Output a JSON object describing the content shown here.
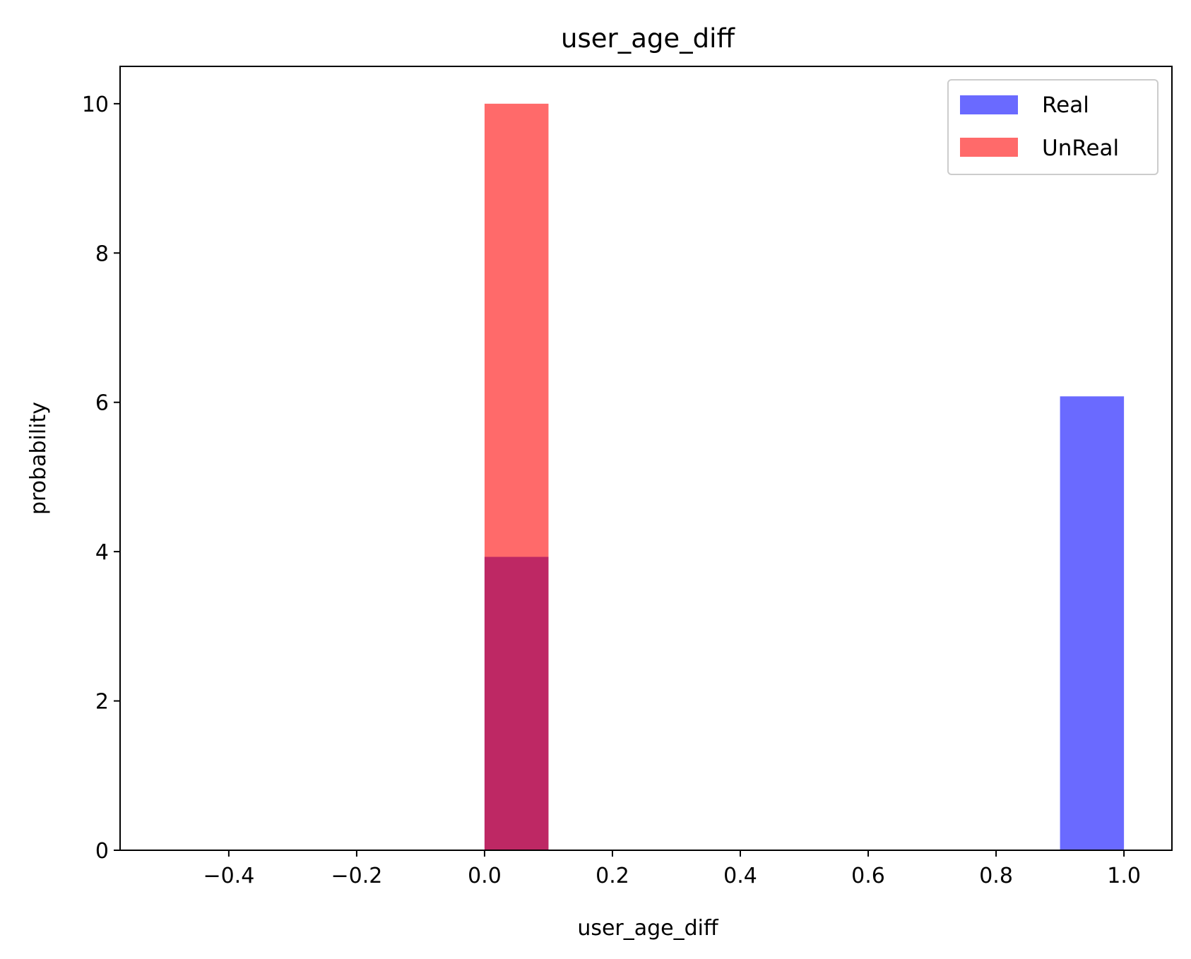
{
  "chart_data": {
    "type": "bar",
    "title": "user_age_diff",
    "xlabel": "user_age_diff",
    "ylabel": "probability",
    "xlim": [
      -0.57,
      1.075
    ],
    "ylim": [
      0,
      10.5
    ],
    "x_ticks": [
      {
        "value": -0.4,
        "label": "−0.4"
      },
      {
        "value": -0.2,
        "label": "−0.2"
      },
      {
        "value": 0.0,
        "label": "0.0"
      },
      {
        "value": 0.2,
        "label": "0.2"
      },
      {
        "value": 0.4,
        "label": "0.4"
      },
      {
        "value": 0.6,
        "label": "0.6"
      },
      {
        "value": 0.8,
        "label": "0.8"
      },
      {
        "value": 1.0,
        "label": "1.0"
      }
    ],
    "y_ticks": [
      {
        "value": 0,
        "label": "0"
      },
      {
        "value": 2,
        "label": "2"
      },
      {
        "value": 4,
        "label": "4"
      },
      {
        "value": 6,
        "label": "6"
      },
      {
        "value": 8,
        "label": "8"
      },
      {
        "value": 10,
        "label": "10"
      }
    ],
    "grid": false,
    "legend_position": "top-right",
    "series": [
      {
        "name": "Real",
        "color": "#6a6aff",
        "bins": [
          {
            "x0": 0.0,
            "x1": 0.1,
            "value": 3.93
          },
          {
            "x0": 0.9,
            "x1": 1.0,
            "value": 6.08
          }
        ]
      },
      {
        "name": "UnReal",
        "color": "#ff6a6a",
        "bins": [
          {
            "x0": 0.0,
            "x1": 0.1,
            "value": 10.0
          }
        ]
      }
    ],
    "overlap_color": "#be2864"
  }
}
